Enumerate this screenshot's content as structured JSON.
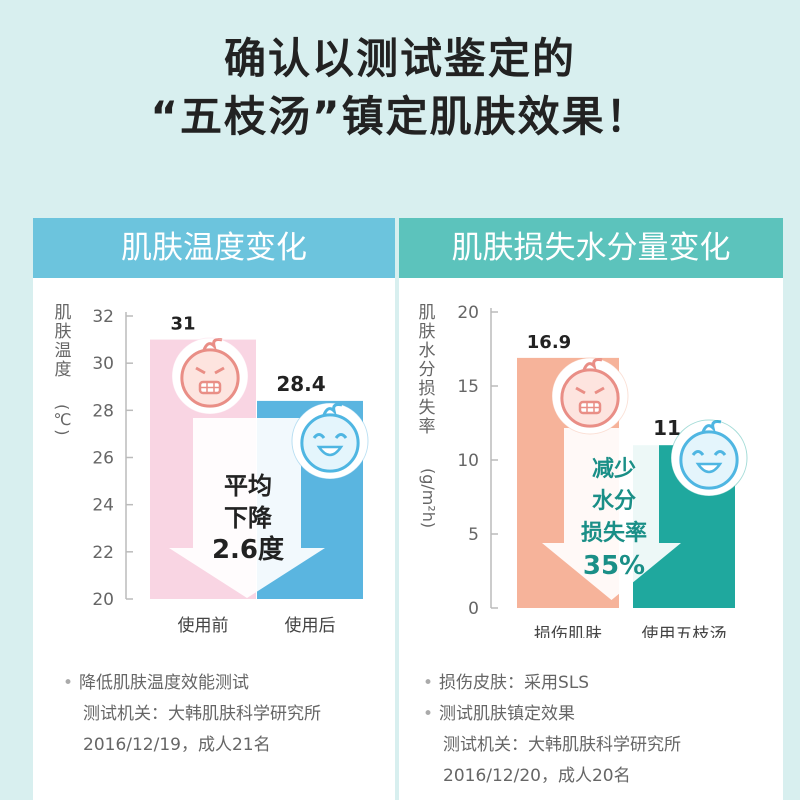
{
  "headline": {
    "line1": "确认以测试鉴定的",
    "line2": "“五枝汤”镇定肌肤效果！"
  },
  "colors": {
    "left_header": "#6cc4dd",
    "right_header": "#5cc3bc",
    "left_before_bar": "#f9d5e3",
    "left_after_bar": "#5ab5e0",
    "right_before_bar": "#f6b39a",
    "right_after_bar": "#1fa89e",
    "arrow_fill": "#ffffff"
  },
  "icons": [
    "angry-baby-face-icon",
    "happy-baby-face-icon"
  ],
  "chart_data": [
    {
      "type": "bar",
      "title": "肌肤温度变化",
      "ylabel": "肌肤温度",
      "yunit": "(℃)",
      "ylim": [
        20,
        32
      ],
      "yticks": [
        "32",
        "30",
        "28",
        "26",
        "24",
        "22",
        "20"
      ],
      "categories": [
        "使用前",
        "使用后"
      ],
      "values": [
        31,
        28.4
      ],
      "value_labels": [
        "31",
        "28.4"
      ],
      "annotation": [
        "平均",
        "下降",
        "2.6度"
      ],
      "notes": [
        "降低肌肤温度效能测试",
        "测试机关：大韩肌肤科学研究所",
        "2016/12/19，成人21名"
      ]
    },
    {
      "type": "bar",
      "title": "肌肤损失水分量变化",
      "ylabel": "肌肤水分损失率",
      "yunit": "(g/m²h)",
      "ylim": [
        0,
        20
      ],
      "yticks": [
        "20",
        "15",
        "10",
        "5",
        "0"
      ],
      "categories": [
        "损伤肌肤",
        "使用五枝汤"
      ],
      "values": [
        16.9,
        11
      ],
      "value_labels": [
        "16.9",
        "11"
      ],
      "annotation": [
        "减少",
        "水分",
        "损失率",
        "35%"
      ],
      "notes": [
        "损伤皮肤：采用SLS",
        "测试肌肤镇定效果",
        "测试机关：大韩肌肤科学研究所",
        "2016/12/20，成人20名"
      ]
    }
  ]
}
